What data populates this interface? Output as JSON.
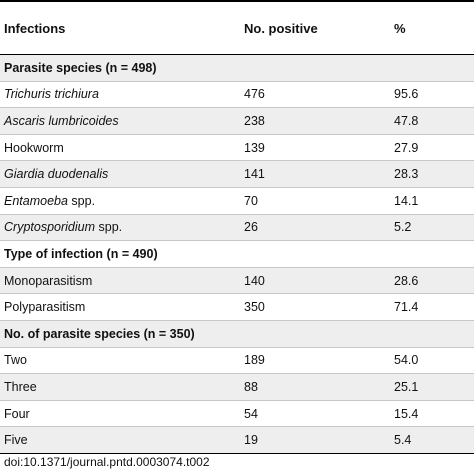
{
  "header": {
    "col1": "Infections",
    "col2": "No. positive",
    "col3": "%"
  },
  "rows": [
    {
      "type": "section",
      "label": "Parasite species (n = 498)"
    },
    {
      "type": "data",
      "label": "Trichuris trichiura",
      "italic": true,
      "n": "476",
      "pct": "95.6"
    },
    {
      "type": "data",
      "label": "Ascaris lumbricoides",
      "italic": true,
      "n": "238",
      "pct": "47.8"
    },
    {
      "type": "data",
      "label": "Hookworm",
      "italic": false,
      "n": "139",
      "pct": "27.9"
    },
    {
      "type": "data",
      "label": "Giardia duodenalis",
      "italic": true,
      "n": "141",
      "pct": "28.3"
    },
    {
      "type": "data",
      "label_italic": "Entamoeba",
      "label_rest": " spp.",
      "n": "70",
      "pct": "14.1"
    },
    {
      "type": "data",
      "label_italic": "Cryptosporidium",
      "label_rest": " spp.",
      "n": "26",
      "pct": "5.2"
    },
    {
      "type": "section",
      "label": "Type of infection (n = 490)"
    },
    {
      "type": "data",
      "label": "Monoparasitism",
      "italic": false,
      "n": "140",
      "pct": "28.6"
    },
    {
      "type": "data",
      "label": "Polyparasitism",
      "italic": false,
      "n": "350",
      "pct": "71.4"
    },
    {
      "type": "section",
      "label": "No. of parasite species (n = 350)"
    },
    {
      "type": "data",
      "label": "Two",
      "italic": false,
      "n": "189",
      "pct": "54.0"
    },
    {
      "type": "data",
      "label": "Three",
      "italic": false,
      "n": "88",
      "pct": "25.1"
    },
    {
      "type": "data",
      "label": "Four",
      "italic": false,
      "n": "54",
      "pct": "15.4"
    },
    {
      "type": "data",
      "label": "Five",
      "italic": false,
      "n": "19",
      "pct": "5.4"
    }
  ],
  "caption": "doi:10.1371/journal.pntd.0003074.t002"
}
